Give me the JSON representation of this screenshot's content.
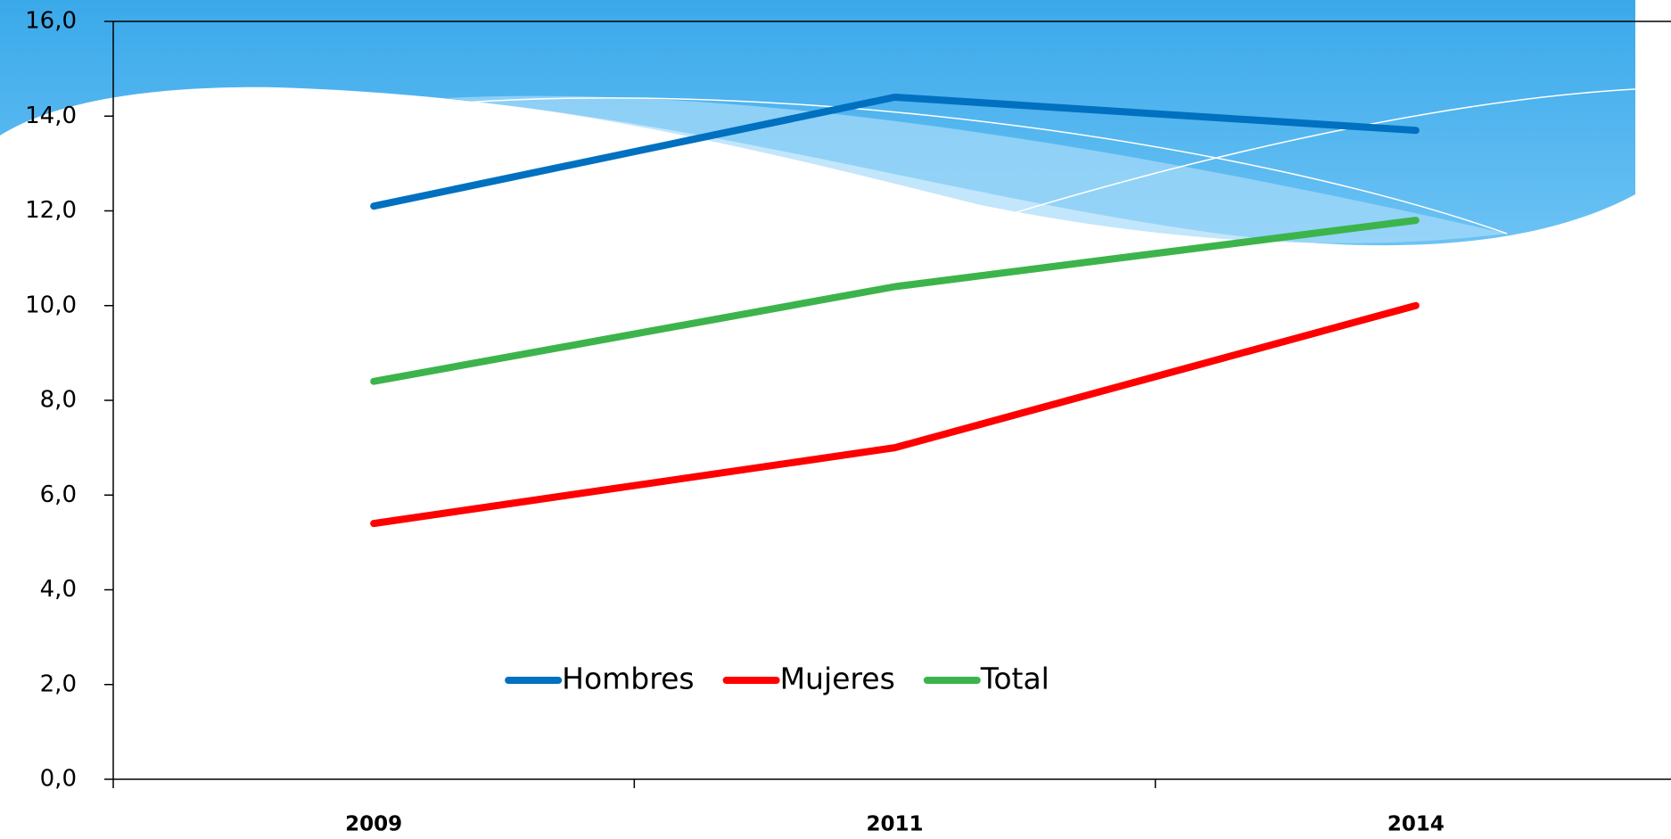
{
  "chart_data": {
    "type": "line",
    "categories": [
      "2009",
      "2011",
      "2014"
    ],
    "series": [
      {
        "name": "Hombres",
        "color": "#0070c0",
        "values": [
          12.1,
          14.4,
          13.7
        ]
      },
      {
        "name": "Mujeres",
        "color": "#ff0000",
        "values": [
          5.4,
          7.0,
          10.0
        ]
      },
      {
        "name": "Total",
        "color": "#3cb44b",
        "values": [
          8.4,
          10.4,
          11.8
        ]
      }
    ],
    "ylim": [
      0,
      16
    ],
    "yticks": [
      {
        "value": 0,
        "label": "0,0"
      },
      {
        "value": 2,
        "label": "2,0"
      },
      {
        "value": 4,
        "label": "4,0"
      },
      {
        "value": 6,
        "label": "6,0"
      },
      {
        "value": 8,
        "label": "8,0"
      },
      {
        "value": 10,
        "label": "10,0"
      },
      {
        "value": 12,
        "label": "12,0"
      },
      {
        "value": 14,
        "label": "14,0"
      },
      {
        "value": 16,
        "label": "16,0"
      }
    ],
    "legend": "bottom"
  }
}
